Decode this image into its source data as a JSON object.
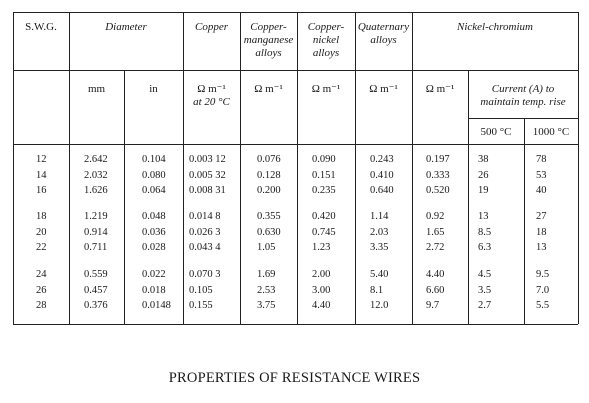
{
  "table": {
    "headers": {
      "swg": "S.W.G.",
      "diameter": "Diameter",
      "copper": "Copper",
      "copper_manganese": [
        "Copper-",
        "manganese",
        "alloys"
      ],
      "copper_nickel": [
        "Copper-",
        "nickel",
        "alloys"
      ],
      "quaternary": [
        "Quaternary",
        "alloys"
      ],
      "nickel_chromium": "Nickel-chromium"
    },
    "units": {
      "mm": "mm",
      "in": "in",
      "copper": "Ω m⁻¹",
      "copper_note": "at 20 °C",
      "cu_mn": "Ω m⁻¹",
      "cu_ni": "Ω m⁻¹",
      "quat": "Ω m⁻¹",
      "nicr": "Ω m⁻¹",
      "current_title": [
        "Current (A) to",
        "maintain temp. rise"
      ],
      "t500": "500 °C",
      "t1000": "1000 °C"
    },
    "groups": [
      {
        "swg": [
          "12",
          "14",
          "16"
        ],
        "mm": [
          "2.642",
          "2.032",
          "1.626"
        ],
        "in": [
          "0.104",
          "0.080",
          "0.064"
        ],
        "copper": [
          "0.003 12",
          "0.005 32",
          "0.008 31"
        ],
        "cu_mn": [
          "0.076",
          "0.128",
          "0.200"
        ],
        "cu_ni": [
          "0.090",
          "0.151",
          "0.235"
        ],
        "quat": [
          "0.243",
          "0.410",
          "0.640"
        ],
        "nicr": [
          "0.197",
          "0.333",
          "0.520"
        ],
        "c500": [
          "38",
          "26",
          "19"
        ],
        "c1000": [
          "78",
          "53",
          "40"
        ]
      },
      {
        "swg": [
          "18",
          "20",
          "22"
        ],
        "mm": [
          "1.219",
          "0.914",
          "0.711"
        ],
        "in": [
          "0.048",
          "0.036",
          "0.028"
        ],
        "copper": [
          "0.014 8",
          "0.026 3",
          "0.043 4"
        ],
        "cu_mn": [
          "0.355",
          "0.630",
          "1.05"
        ],
        "cu_ni": [
          "0.420",
          "0.745",
          "1.23"
        ],
        "quat": [
          "1.14",
          "2.03",
          "3.35"
        ],
        "nicr": [
          "0.92",
          "1.65",
          "2.72"
        ],
        "c500": [
          "13",
          "8.5",
          "6.3"
        ],
        "c1000": [
          "27",
          "18",
          "13"
        ]
      },
      {
        "swg": [
          "24",
          "26",
          "28"
        ],
        "mm": [
          "0.559",
          "0.457",
          "0.376"
        ],
        "in": [
          "0.022",
          "0.018",
          "0.0148"
        ],
        "copper": [
          "0.070 3",
          "0.105",
          "0.155"
        ],
        "cu_mn": [
          "1.69",
          "2.53",
          "3.75"
        ],
        "cu_ni": [
          "2.00",
          "3.00",
          "4.40"
        ],
        "quat": [
          "5.40",
          "8.1",
          "12.0"
        ],
        "nicr": [
          "4.40",
          "6.60",
          "9.7"
        ],
        "c500": [
          "4.5",
          "3.5",
          "2.7"
        ],
        "c1000": [
          "9.5",
          "7.0",
          "5.5"
        ]
      }
    ]
  },
  "caption": "PROPERTIES OF RESISTANCE WIRES"
}
